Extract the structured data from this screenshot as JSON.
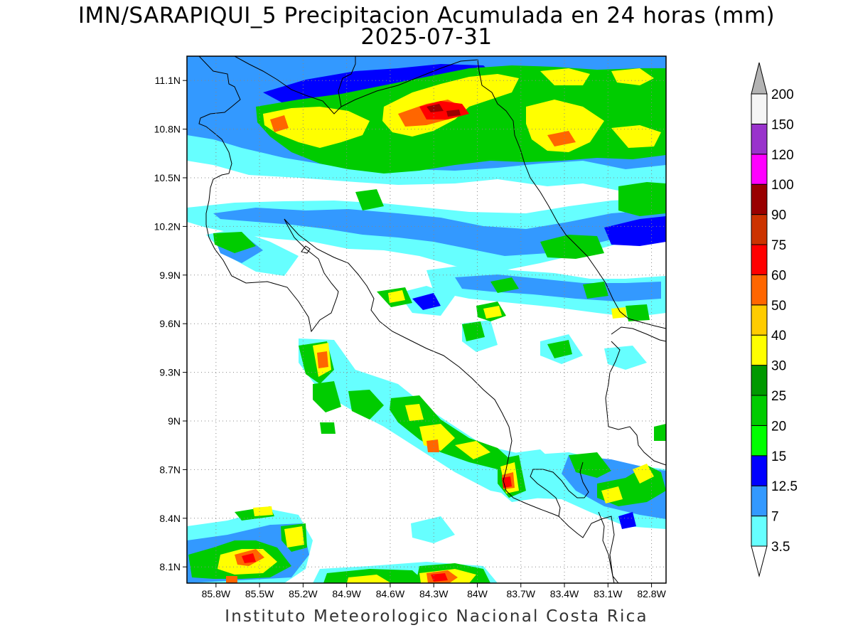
{
  "title": "IMN/SARAPIQUI_5 Precipitacion Acumulada en 24 horas (mm)",
  "date": "2025-07-31",
  "footer": "Instituto Meteorologico Nacional Costa Rica",
  "map": {
    "lon_range": [
      -86.0,
      -82.7
    ],
    "lat_range": [
      8.0,
      11.25
    ],
    "lon_ticks": [
      -85.8,
      -85.5,
      -85.2,
      -84.9,
      -84.6,
      -84.3,
      -84.0,
      -83.7,
      -83.4,
      -83.1,
      -82.8
    ],
    "lon_tick_labels": [
      "85.8W",
      "85.5W",
      "85.2W",
      "84.9W",
      "84.6W",
      "84.3W",
      "84W",
      "83.7W",
      "83.4W",
      "83.1W",
      "82.8W"
    ],
    "lat_ticks": [
      8.1,
      8.4,
      8.7,
      9.0,
      9.3,
      9.6,
      9.9,
      10.2,
      10.5,
      10.8,
      11.1
    ],
    "lat_tick_labels": [
      "8.1N",
      "8.4N",
      "8.7N",
      "9N",
      "9.3N",
      "9.6N",
      "9.9N",
      "10.2N",
      "10.5N",
      "10.8N",
      "11.1N"
    ],
    "grid": "dotted"
  },
  "colorbar": {
    "labels": [
      "3.5",
      "7",
      "12.5",
      "15",
      "20",
      "25",
      "30",
      "40",
      "50",
      "60",
      "75",
      "90",
      "100",
      "120",
      "150",
      "200"
    ],
    "colors": [
      "#66ffff",
      "#3399ff",
      "#0000ff",
      "#00ff00",
      "#00cc00",
      "#009900",
      "#ffff00",
      "#ffcc00",
      "#ff6600",
      "#ff0000",
      "#cc3300",
      "#990000",
      "#ff00ff",
      "#9933cc",
      "#f5f5f5"
    ],
    "overflow_color": "#b3b3b3",
    "underflow_color": "#ffffff"
  }
}
